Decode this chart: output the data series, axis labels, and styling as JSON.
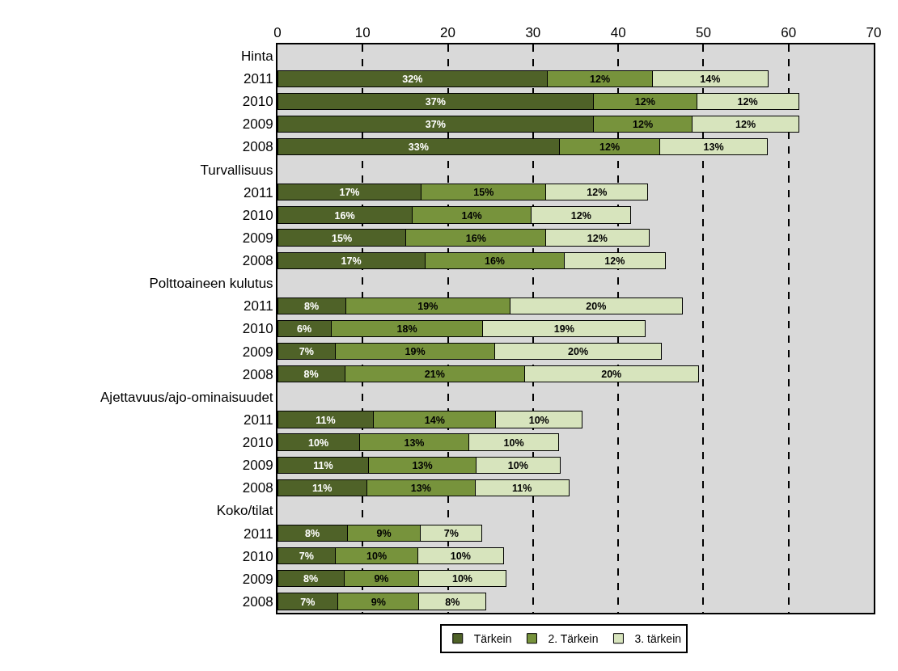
{
  "chart_data": {
    "type": "bar",
    "orientation": "horizontal",
    "stacked": true,
    "categories": [
      "Hinta",
      "2011",
      "2010",
      "2009",
      "2008",
      "Turvallisuus",
      "2011",
      "2010",
      "2009",
      "2008",
      "Polttoaineen kulutus",
      "2011",
      "2010",
      "2009",
      "2008",
      "Ajettavuus/ajo-ominaisuudet",
      "2011",
      "2010",
      "2009",
      "2008",
      "Koko/tilat",
      "2011",
      "2010",
      "2009",
      "2008"
    ],
    "series": [
      {
        "name": "Tärkein",
        "color": "#4f6228",
        "values": [
          null,
          31.7,
          37.1,
          37.1,
          33.1,
          null,
          16.9,
          15.8,
          15.1,
          17.3,
          null,
          8.0,
          6.3,
          6.8,
          7.9,
          null,
          11.3,
          9.6,
          10.7,
          10.5,
          null,
          8.2,
          6.8,
          7.8,
          7.1
        ],
        "value_labels": [
          null,
          "32%",
          "37%",
          "37%",
          "33%",
          null,
          "17%",
          "16%",
          "15%",
          "17%",
          null,
          "8%",
          "6%",
          "7%",
          "8%",
          null,
          "11%",
          "10%",
          "11%",
          "11%",
          null,
          "8%",
          "7%",
          "8%",
          "7%"
        ]
      },
      {
        "name": "2. Tärkein",
        "color": "#77933c",
        "values": [
          null,
          12.3,
          12.1,
          11.6,
          11.8,
          null,
          14.6,
          14.0,
          16.4,
          16.4,
          null,
          19.3,
          17.8,
          18.7,
          21.1,
          null,
          14.3,
          12.9,
          12.6,
          12.7,
          null,
          8.6,
          9.7,
          8.8,
          9.5
        ],
        "value_labels": [
          null,
          "12%",
          "12%",
          "12%",
          "12%",
          null,
          "15%",
          "14%",
          "16%",
          "16%",
          null,
          "19%",
          "18%",
          "19%",
          "21%",
          null,
          "14%",
          "13%",
          "13%",
          "13%",
          null,
          "9%",
          "10%",
          "9%",
          "9%"
        ]
      },
      {
        "name": "3. tärkein",
        "color": "#d7e4bd",
        "values": [
          null,
          13.6,
          12.0,
          12.5,
          12.6,
          null,
          12.0,
          11.7,
          12.1,
          11.8,
          null,
          20.2,
          19.1,
          19.6,
          20.4,
          null,
          10.2,
          10.5,
          9.9,
          11.0,
          null,
          7.2,
          10.0,
          10.2,
          7.9
        ],
        "value_labels": [
          null,
          "14%",
          "12%",
          "12%",
          "13%",
          null,
          "12%",
          "12%",
          "12%",
          "12%",
          null,
          "20%",
          "19%",
          "20%",
          "20%",
          null,
          "10%",
          "10%",
          "10%",
          "11%",
          null,
          "7%",
          "10%",
          "10%",
          "8%"
        ]
      }
    ],
    "xlim": [
      0,
      70
    ],
    "xticks": [
      0,
      10,
      20,
      30,
      40,
      50,
      60,
      70
    ],
    "grid": "x",
    "legend": "bottom"
  }
}
